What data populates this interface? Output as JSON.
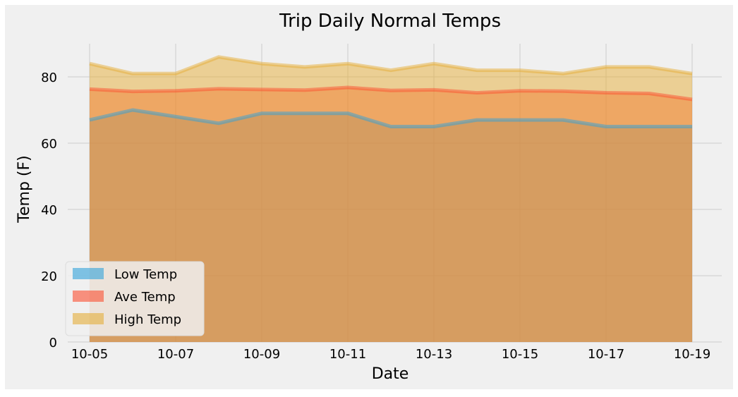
{
  "chart_data": {
    "type": "area",
    "title": "Trip Daily Normal Temps",
    "xlabel": "Date",
    "ylabel": "Temp (F)",
    "x": [
      "10-05",
      "10-06",
      "10-07",
      "10-08",
      "10-09",
      "10-10",
      "10-11",
      "10-12",
      "10-13",
      "10-14",
      "10-15",
      "10-16",
      "10-17",
      "10-18",
      "10-19"
    ],
    "x_tick_labels": [
      "10-05",
      "10-07",
      "10-09",
      "10-11",
      "10-13",
      "10-15",
      "10-17",
      "10-19"
    ],
    "ylim": [
      0,
      90
    ],
    "y_ticks": [
      0,
      20,
      40,
      60,
      80
    ],
    "grid": true,
    "stacked": false,
    "legend_position": "lower-left",
    "series": [
      {
        "name": "Low Temp",
        "color": "#30a2da",
        "values": [
          67,
          70,
          68,
          66,
          69,
          69,
          69,
          65,
          65,
          67,
          67,
          67,
          65,
          65,
          65
        ]
      },
      {
        "name": "Ave Temp",
        "color": "#fc4f30",
        "values": [
          76.3,
          75.6,
          75.8,
          76.4,
          76.2,
          76.0,
          76.8,
          75.9,
          76.1,
          75.2,
          75.8,
          75.7,
          75.2,
          75.0,
          73.2
        ]
      },
      {
        "name": "High Temp",
        "color": "#e5ae38",
        "values": [
          84,
          81,
          81,
          86,
          84,
          83,
          84,
          82,
          84,
          82,
          82,
          81,
          83,
          83,
          81
        ]
      }
    ]
  }
}
